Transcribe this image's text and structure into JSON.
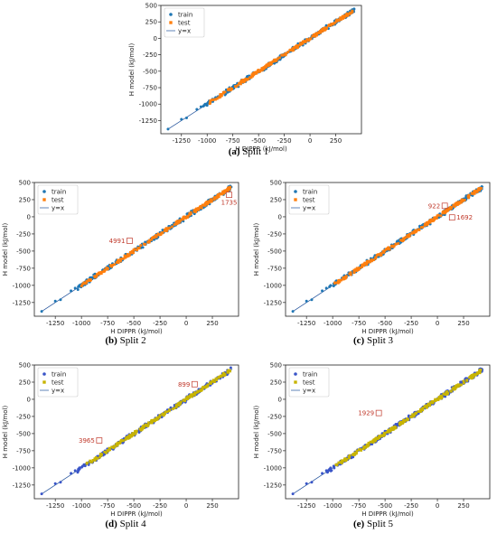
{
  "chart_data": [
    {
      "type": "scatter",
      "caption_letter": "(a)",
      "caption_text": "Split 1",
      "xlabel": "H DIPPR (kJ/mol)",
      "ylabel": "H model (kJ/mol)",
      "xlim": [
        -1450,
        500
      ],
      "ylim": [
        -1450,
        500
      ],
      "xticks": [
        -1250,
        -1000,
        -750,
        -500,
        -250,
        0,
        250
      ],
      "yticks": [
        500,
        250,
        0,
        -250,
        -500,
        -750,
        -1000,
        -1250
      ],
      "legend": {
        "position": "upper-left",
        "entries": [
          "train",
          "test",
          "y=x"
        ]
      },
      "series": [
        {
          "name": "train",
          "color": "#1f77b4"
        },
        {
          "name": "test",
          "color": "#ff7f0e"
        }
      ],
      "reference_line": {
        "name": "y=x",
        "from": [
          -1380,
          -1380
        ],
        "to": [
          440,
          440
        ],
        "color": "#1f4f9a"
      },
      "annotations": []
    },
    {
      "type": "scatter",
      "caption_letter": "(b)",
      "caption_text": "Split 2",
      "xlabel": "H DIPPR (kJ/mol)",
      "ylabel": "H model (kJ/mol)",
      "xlim": [
        -1450,
        500
      ],
      "ylim": [
        -1450,
        500
      ],
      "xticks": [
        -1250,
        -1000,
        -750,
        -500,
        -250,
        0,
        250
      ],
      "yticks": [
        500,
        250,
        0,
        -250,
        -500,
        -750,
        -1000,
        -1250
      ],
      "legend": {
        "position": "upper-left",
        "entries": [
          "train",
          "test",
          "y=x"
        ]
      },
      "series": [
        {
          "name": "train",
          "color": "#1f77b4"
        },
        {
          "name": "test",
          "color": "#ff7f0e"
        }
      ],
      "reference_line": {
        "name": "y=x",
        "from": [
          -1380,
          -1380
        ],
        "to": [
          440,
          440
        ],
        "color": "#1f4f9a"
      },
      "annotations": [
        {
          "label": "4991",
          "x": -540,
          "y": -350,
          "side": "left"
        },
        {
          "label": "1735",
          "x": 410,
          "y": 320,
          "side": "below"
        }
      ]
    },
    {
      "type": "scatter",
      "caption_letter": "(c)",
      "caption_text": "Split 3",
      "xlabel": "H DIPPR (kJ/mol)",
      "ylabel": "H model (kJ/mol)",
      "xlim": [
        -1450,
        500
      ],
      "ylim": [
        -1450,
        500
      ],
      "xticks": [
        -1250,
        -1000,
        -750,
        -500,
        -250,
        0,
        250
      ],
      "yticks": [
        500,
        250,
        0,
        -250,
        -500,
        -750,
        -1000,
        -1250
      ],
      "legend": {
        "position": "upper-left",
        "entries": [
          "train",
          "test",
          "y=x"
        ]
      },
      "series": [
        {
          "name": "train",
          "color": "#1f77b4"
        },
        {
          "name": "test",
          "color": "#ff7f0e"
        }
      ],
      "reference_line": {
        "name": "y=x",
        "from": [
          -1380,
          -1380
        ],
        "to": [
          440,
          440
        ],
        "color": "#1f4f9a"
      },
      "annotations": [
        {
          "label": "922",
          "x": 70,
          "y": 160,
          "side": "left"
        },
        {
          "label": "1692",
          "x": 140,
          "y": -10,
          "side": "right"
        }
      ]
    },
    {
      "type": "scatter",
      "caption_letter": "(d)",
      "caption_text": "Split 4",
      "xlabel": "H DIPPR (kJ/mol)",
      "ylabel": "H model (kJ/mol)",
      "xlim": [
        -1450,
        500
      ],
      "ylim": [
        -1450,
        500
      ],
      "xticks": [
        -1250,
        -1000,
        -750,
        -500,
        -250,
        0,
        250
      ],
      "yticks": [
        500,
        250,
        0,
        -250,
        -500,
        -750,
        -1000,
        -1250
      ],
      "legend": {
        "position": "upper-left",
        "entries": [
          "train",
          "test",
          "y=x"
        ]
      },
      "series": [
        {
          "name": "train",
          "color": "#3a55c8"
        },
        {
          "name": "test",
          "color": "#c8b400"
        }
      ],
      "reference_line": {
        "name": "y=x",
        "from": [
          -1380,
          -1380
        ],
        "to": [
          440,
          440
        ],
        "color": "#1f4f9a"
      },
      "annotations": [
        {
          "label": "899",
          "x": 80,
          "y": 220,
          "side": "left"
        },
        {
          "label": "3965",
          "x": -830,
          "y": -600,
          "side": "left"
        }
      ]
    },
    {
      "type": "scatter",
      "caption_letter": "(e)",
      "caption_text": "Split 5",
      "xlabel": "H DIPPR (kJ/mol)",
      "ylabel": "H model (kJ/mol)",
      "xlim": [
        -1450,
        500
      ],
      "ylim": [
        -1450,
        500
      ],
      "xticks": [
        -1250,
        -1000,
        -750,
        -500,
        -250,
        0,
        250
      ],
      "yticks": [
        500,
        250,
        0,
        -250,
        -500,
        -750,
        -1000,
        -1250
      ],
      "legend": {
        "position": "upper-left",
        "entries": [
          "train",
          "test",
          "y=x"
        ]
      },
      "series": [
        {
          "name": "train",
          "color": "#3a55c8"
        },
        {
          "name": "test",
          "color": "#c8b400"
        }
      ],
      "reference_line": {
        "name": "y=x",
        "from": [
          -1380,
          -1380
        ],
        "to": [
          440,
          440
        ],
        "color": "#1f4f9a"
      },
      "annotations": [
        {
          "label": "1929",
          "x": -560,
          "y": -200,
          "side": "left"
        }
      ]
    }
  ]
}
